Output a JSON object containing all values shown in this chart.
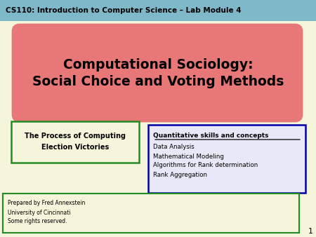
{
  "bg_color": "#f5f5dc",
  "header_bg": "#7fb8c8",
  "header_text": "CS110: Introduction to Computer Science – Lab Module 4",
  "header_text_color": "#000000",
  "title_box_color": "#e87878",
  "title_line1": "Computational Sociology:",
  "title_line2": "Social Choice and Voting Methods",
  "title_text_color": "#000000",
  "green_box_text_line1": "The Process of Computing",
  "green_box_text_line2": "Election Victories",
  "green_box_border": "#228B22",
  "green_box_bg": "#f5f5dc",
  "blue_box_title": "Quantitative skills and concepts",
  "blue_box_items": [
    "Data Analysis",
    "Mathematical Modeling",
    "Algorithms for Rank determination",
    "Rank Aggregation"
  ],
  "blue_box_border": "#0000aa",
  "blue_box_bg": "#e8e8f8",
  "footer_line1": "Prepared by Fred Annexstein",
  "footer_line2": "University of Cincinnati",
  "footer_line3": "Some rights reserved.",
  "footer_border": "#228B22",
  "footer_bg": "#f5f5dc",
  "page_number": "1"
}
